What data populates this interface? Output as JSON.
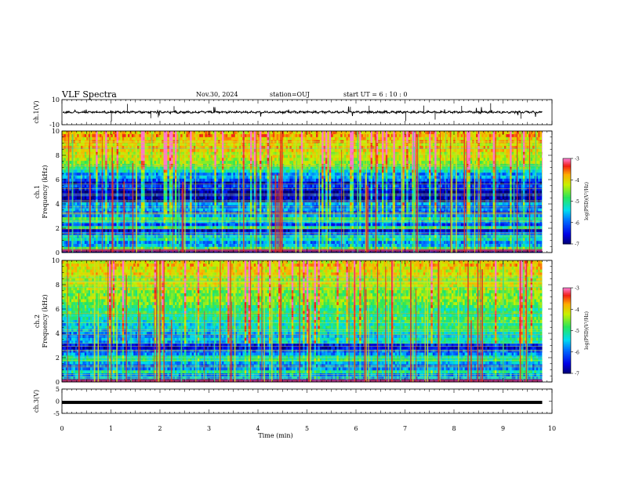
{
  "header": {
    "title": "VLF Spectra",
    "date": "Nov.30, 2024",
    "station": "station=OUJ",
    "start_ut": "start  UT =   6  : 10 : 0"
  },
  "chart_data": [
    {
      "type": "line",
      "panel": "ch1-waveform",
      "ylabel": "ch.1(V)",
      "ylim": [
        -10,
        10
      ],
      "yticks": [
        "10",
        "-10"
      ],
      "baseline": 0,
      "color": "#000000"
    },
    {
      "type": "heatmap",
      "panel": "ch1-spectrogram",
      "ylabel": "ch.1\nFrequency  (kHz)",
      "ylim": [
        0,
        10
      ],
      "yticks": [
        "0",
        "2",
        "4",
        "6",
        "8",
        "10"
      ],
      "frequency_profile": [
        0.0,
        0.55,
        0.35,
        0.3,
        0.45,
        0.4,
        0.25,
        0.1,
        0.5,
        0.25,
        0.4,
        0.55,
        0.35,
        0.25,
        0.35,
        0.3,
        0.35,
        0.1,
        0.05,
        0.12,
        0.05,
        0.15,
        0.22,
        0.1,
        0.25,
        0.35,
        0.3,
        0.45,
        0.55,
        0.62,
        0.65,
        0.68,
        0.72,
        0.7,
        0.75,
        0.78,
        0.72,
        0.8,
        0.75,
        0.82,
        0.78
      ],
      "colorbar": {
        "label": "log(PSD)(V²/Hz)",
        "range": [
          -7,
          -3
        ],
        "ticks": [
          "-3",
          "-4",
          "-5",
          "-6",
          "-7"
        ]
      }
    },
    {
      "type": "heatmap",
      "panel": "ch2-spectrogram",
      "ylabel": "ch.2\nFrequency  (kHz)",
      "ylim": [
        0,
        10
      ],
      "yticks": [
        "0",
        "2",
        "4",
        "6",
        "8",
        "10"
      ],
      "frequency_profile": [
        0.05,
        0.35,
        0.3,
        0.5,
        0.3,
        0.25,
        0.35,
        0.5,
        0.45,
        0.3,
        0.25,
        0.1,
        0.15,
        0.3,
        0.35,
        0.25,
        0.3,
        0.35,
        0.4,
        0.35,
        0.4,
        0.45,
        0.5,
        0.55,
        0.5,
        0.55,
        0.6,
        0.62,
        0.65,
        0.6,
        0.62,
        0.68,
        0.7,
        0.72,
        0.68,
        0.7,
        0.75,
        0.72,
        0.75,
        0.78,
        0.74
      ],
      "colorbar": {
        "label": "log(PSD)(V²/Hz)",
        "range": [
          -7,
          -3
        ],
        "ticks": [
          "-3",
          "-4",
          "-5",
          "-6",
          "-7"
        ]
      }
    },
    {
      "type": "line",
      "panel": "ch3-waveform",
      "ylabel": "ch.3(V)",
      "ylim": [
        -5,
        5
      ],
      "yticks": [
        "5",
        "0",
        "-5"
      ],
      "baseline": -0.5,
      "color": "#000000"
    }
  ],
  "xaxis": {
    "label": "Time  (min)",
    "range": [
      0,
      10
    ],
    "ticks": [
      "0",
      "1",
      "2",
      "3",
      "4",
      "5",
      "6",
      "7",
      "8",
      "9",
      "10"
    ],
    "data_end": 9.8
  }
}
